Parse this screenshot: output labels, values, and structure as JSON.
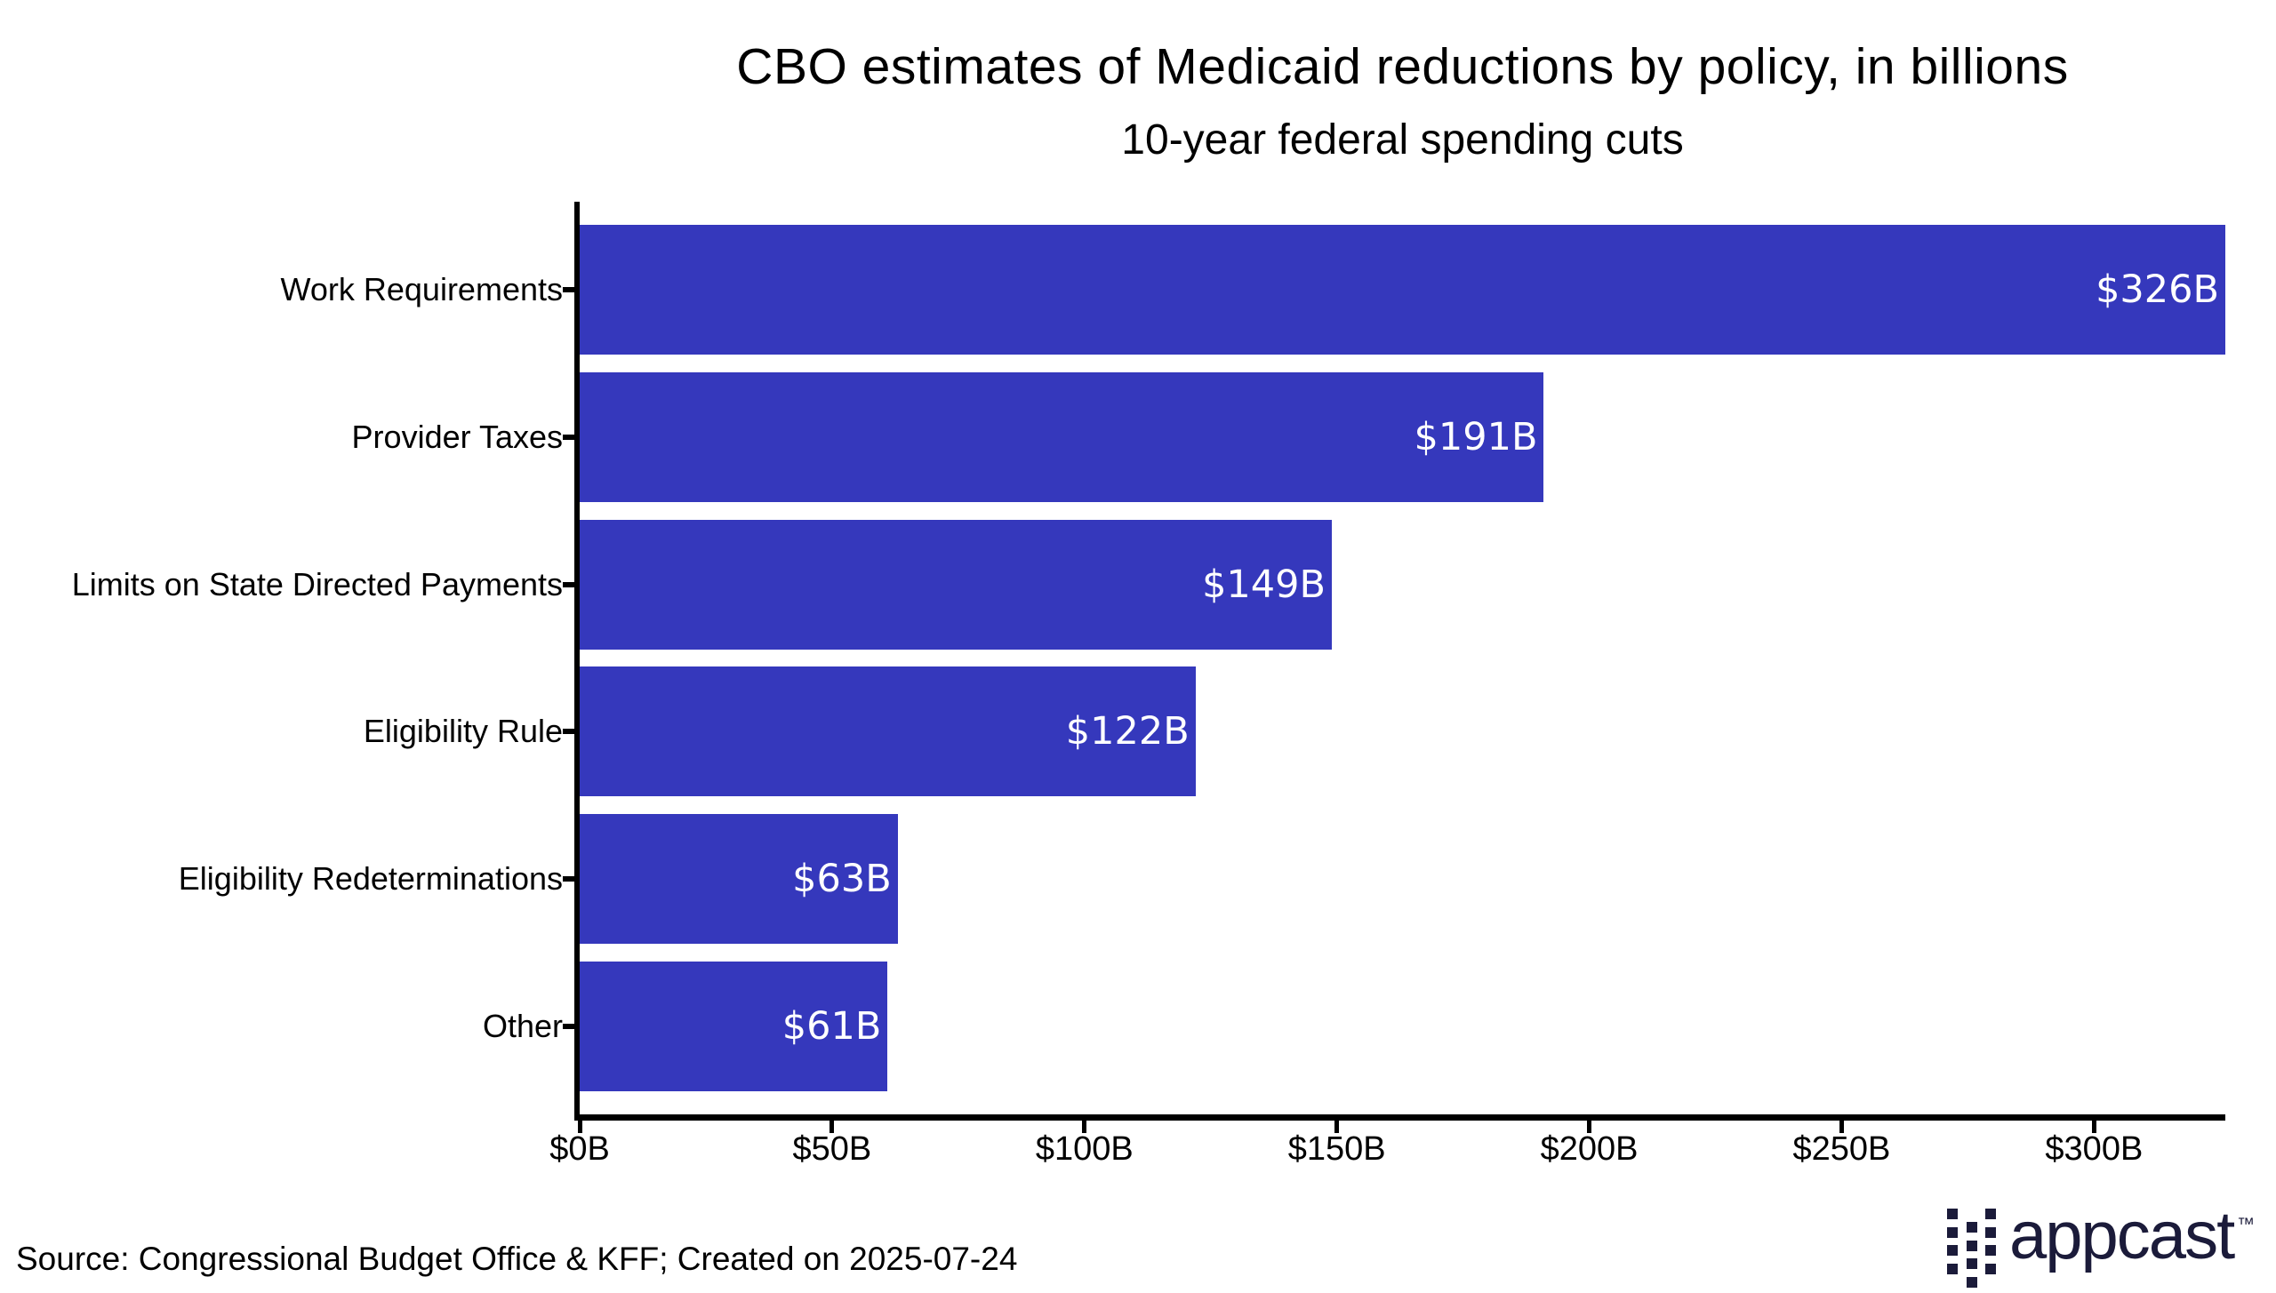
{
  "chart": {
    "source": "Source: Congressional Budget Office & KFF; Created on 2025-07-24",
    "logo_text": "appcast",
    "logo_tm": "™",
    "colors": {
      "bar": "#3538BC",
      "axis": "#000000",
      "value_label_text": "#FFFFFF",
      "logo": "#1B1B3A",
      "background": "#FFFFFF"
    }
  },
  "chart_data": {
    "type": "bar",
    "orientation": "horizontal",
    "title": "CBO estimates of Medicaid reductions by policy, in billions",
    "subtitle": "10-year federal spending cuts",
    "categories": [
      "Work Requirements",
      "Provider Taxes",
      "Limits on State Directed Payments",
      "Eligibility Rule",
      "Eligibility Redeterminations",
      "Other"
    ],
    "values": [
      326,
      191,
      149,
      122,
      63,
      61
    ],
    "value_labels": [
      "$326B",
      "$191B",
      "$149B",
      "$122B",
      "$63B",
      "$61B"
    ],
    "bar_color": "#3538BC",
    "xlabel": "",
    "ylabel": "",
    "xlim": [
      0,
      326
    ],
    "xticks": [
      0,
      50,
      100,
      150,
      200,
      250,
      300
    ],
    "xtick_labels": [
      "$0B",
      "$50B",
      "$100B",
      "$150B",
      "$200B",
      "$250B",
      "$300B"
    ],
    "grid": false,
    "legend": null
  }
}
